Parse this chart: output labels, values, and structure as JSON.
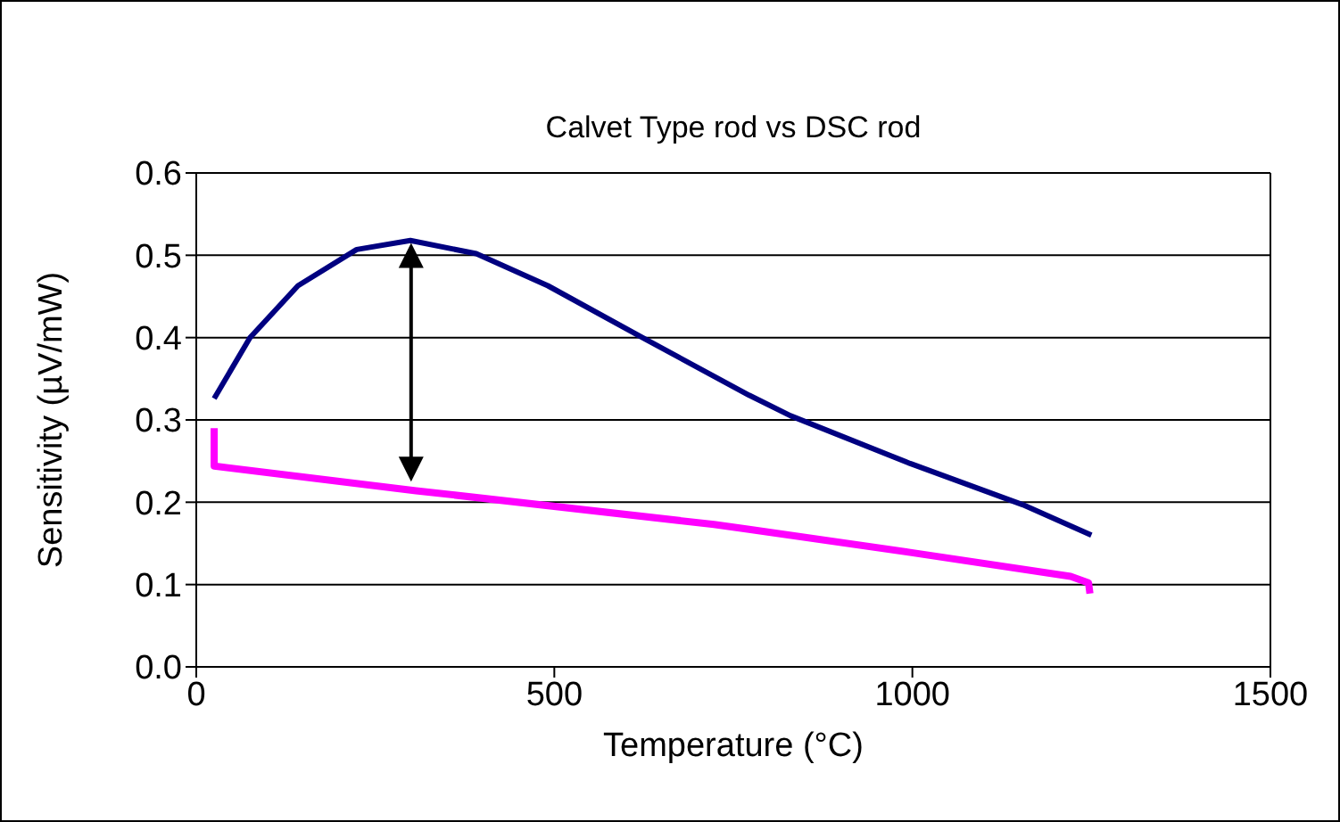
{
  "chart_data": {
    "type": "line",
    "title": "Calvet Type rod vs DSC rod",
    "xlabel": "Temperature (°C)",
    "ylabel": "Sensitivity (µV/mW)",
    "xlim": [
      0,
      1500
    ],
    "xticks": [
      0,
      500,
      1000,
      1500
    ],
    "ylim": [
      0,
      0.6
    ],
    "yticks": [
      {
        "value": 0,
        "label": "0.0"
      },
      0.1,
      0.2,
      0.3,
      0.4,
      0.5,
      0.6
    ],
    "grid": "y",
    "marker": "none",
    "line_style": "solid",
    "series": [
      {
        "color": "#000080",
        "x": [
          25,
          75,
          142,
          224,
          299,
          391,
          491,
          623,
          772,
          830,
          997,
          1154,
          1250
        ],
        "values": [
          0.326,
          0.4,
          0.463,
          0.507,
          0.518,
          0.502,
          0.463,
          0.4,
          0.33,
          0.305,
          0.247,
          0.197,
          0.16
        ]
      },
      {
        "color": "#ff00ff",
        "x": [
          25,
          25,
          307,
          723,
          772,
          997,
          1221,
          1246,
          1248
        ],
        "values": [
          0.29,
          0.244,
          0.214,
          0.173,
          0.167,
          0.139,
          0.11,
          0.102,
          0.089
        ]
      }
    ]
  }
}
